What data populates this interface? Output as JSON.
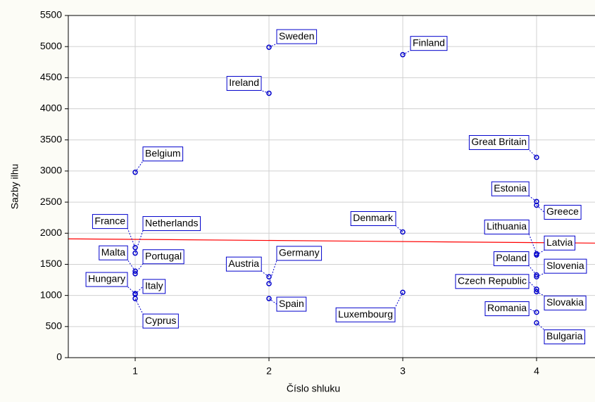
{
  "chart_data": {
    "type": "scatter",
    "x_label": "Číslo shluku",
    "y_label": "Sazby ilhu",
    "xlim": [
      0.5,
      4.5
    ],
    "ylim": [
      0,
      5500
    ],
    "xticks": [
      1,
      2,
      3,
      4
    ],
    "yticks": [
      0,
      500,
      1000,
      1500,
      2000,
      2500,
      3000,
      3500,
      4000,
      4500,
      5000,
      5500
    ],
    "grid": true,
    "color": "#0000cc",
    "points": {
      "labels": [
        "Belgium",
        "France",
        "Netherlands",
        "Malta",
        "Portugal",
        "Hungary",
        "Italy",
        "Cyprus",
        "Sweden",
        "Ireland",
        "Austria",
        "Germany",
        "Spain",
        "Finland",
        "Denmark",
        "Luxembourg",
        "Great Britain",
        "Estonia",
        "Greece",
        "Lithuania",
        "Latvia",
        "Poland",
        "Slovenia",
        "Czech Republic",
        "Slovakia",
        "Romania",
        "Bulgaria"
      ],
      "x": [
        1,
        1,
        1,
        1,
        1,
        1,
        1,
        1,
        2,
        2,
        2,
        2,
        2,
        3,
        3,
        3,
        4,
        4,
        4,
        4,
        4,
        4,
        4,
        4,
        4,
        4,
        4
      ],
      "y": [
        2980,
        1770,
        1680,
        1390,
        1350,
        1030,
        1020,
        950,
        4990,
        4250,
        1300,
        1190,
        950,
        4870,
        2020,
        1050,
        3220,
        2510,
        2450,
        1670,
        1650,
        1330,
        1300,
        1100,
        1060,
        730,
        560
      ]
    },
    "trend_line": {
      "color": "#ff0000",
      "x": [
        0.5,
        4.5
      ],
      "y": [
        1910,
        1840
      ]
    }
  }
}
